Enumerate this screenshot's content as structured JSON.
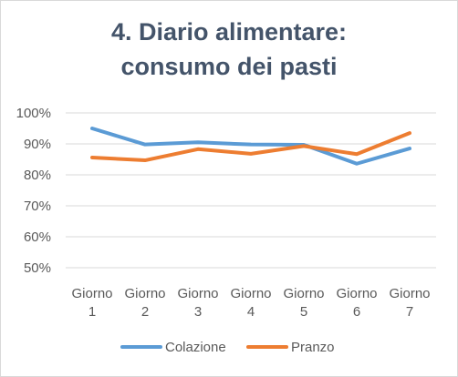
{
  "chart_data": {
    "type": "line",
    "title_line1": "4. Diario alimentare:",
    "title_line2": "consumo dei pasti",
    "categories": [
      [
        "Giorno",
        "1"
      ],
      [
        "Giorno",
        "2"
      ],
      [
        "Giorno",
        "3"
      ],
      [
        "Giorno",
        "4"
      ],
      [
        "Giorno",
        "5"
      ],
      [
        "Giorno",
        "6"
      ],
      [
        "Giorno",
        "7"
      ]
    ],
    "ylim": [
      50,
      100
    ],
    "yticks": [
      "100%",
      "90%",
      "80%",
      "70%",
      "60%",
      "50%"
    ],
    "ytick_values": [
      100,
      90,
      80,
      70,
      60,
      50
    ],
    "grid": true,
    "legend_position": "bottom",
    "series": [
      {
        "name": "Colazione",
        "color": "#5b9bd5",
        "values": [
          95,
          89.8,
          90.5,
          89.8,
          89.7,
          83.6,
          88.5
        ]
      },
      {
        "name": "Pranzo",
        "color": "#ed7d31",
        "values": [
          85.6,
          84.7,
          88.3,
          86.8,
          89.3,
          86.7,
          93.5
        ]
      }
    ]
  }
}
